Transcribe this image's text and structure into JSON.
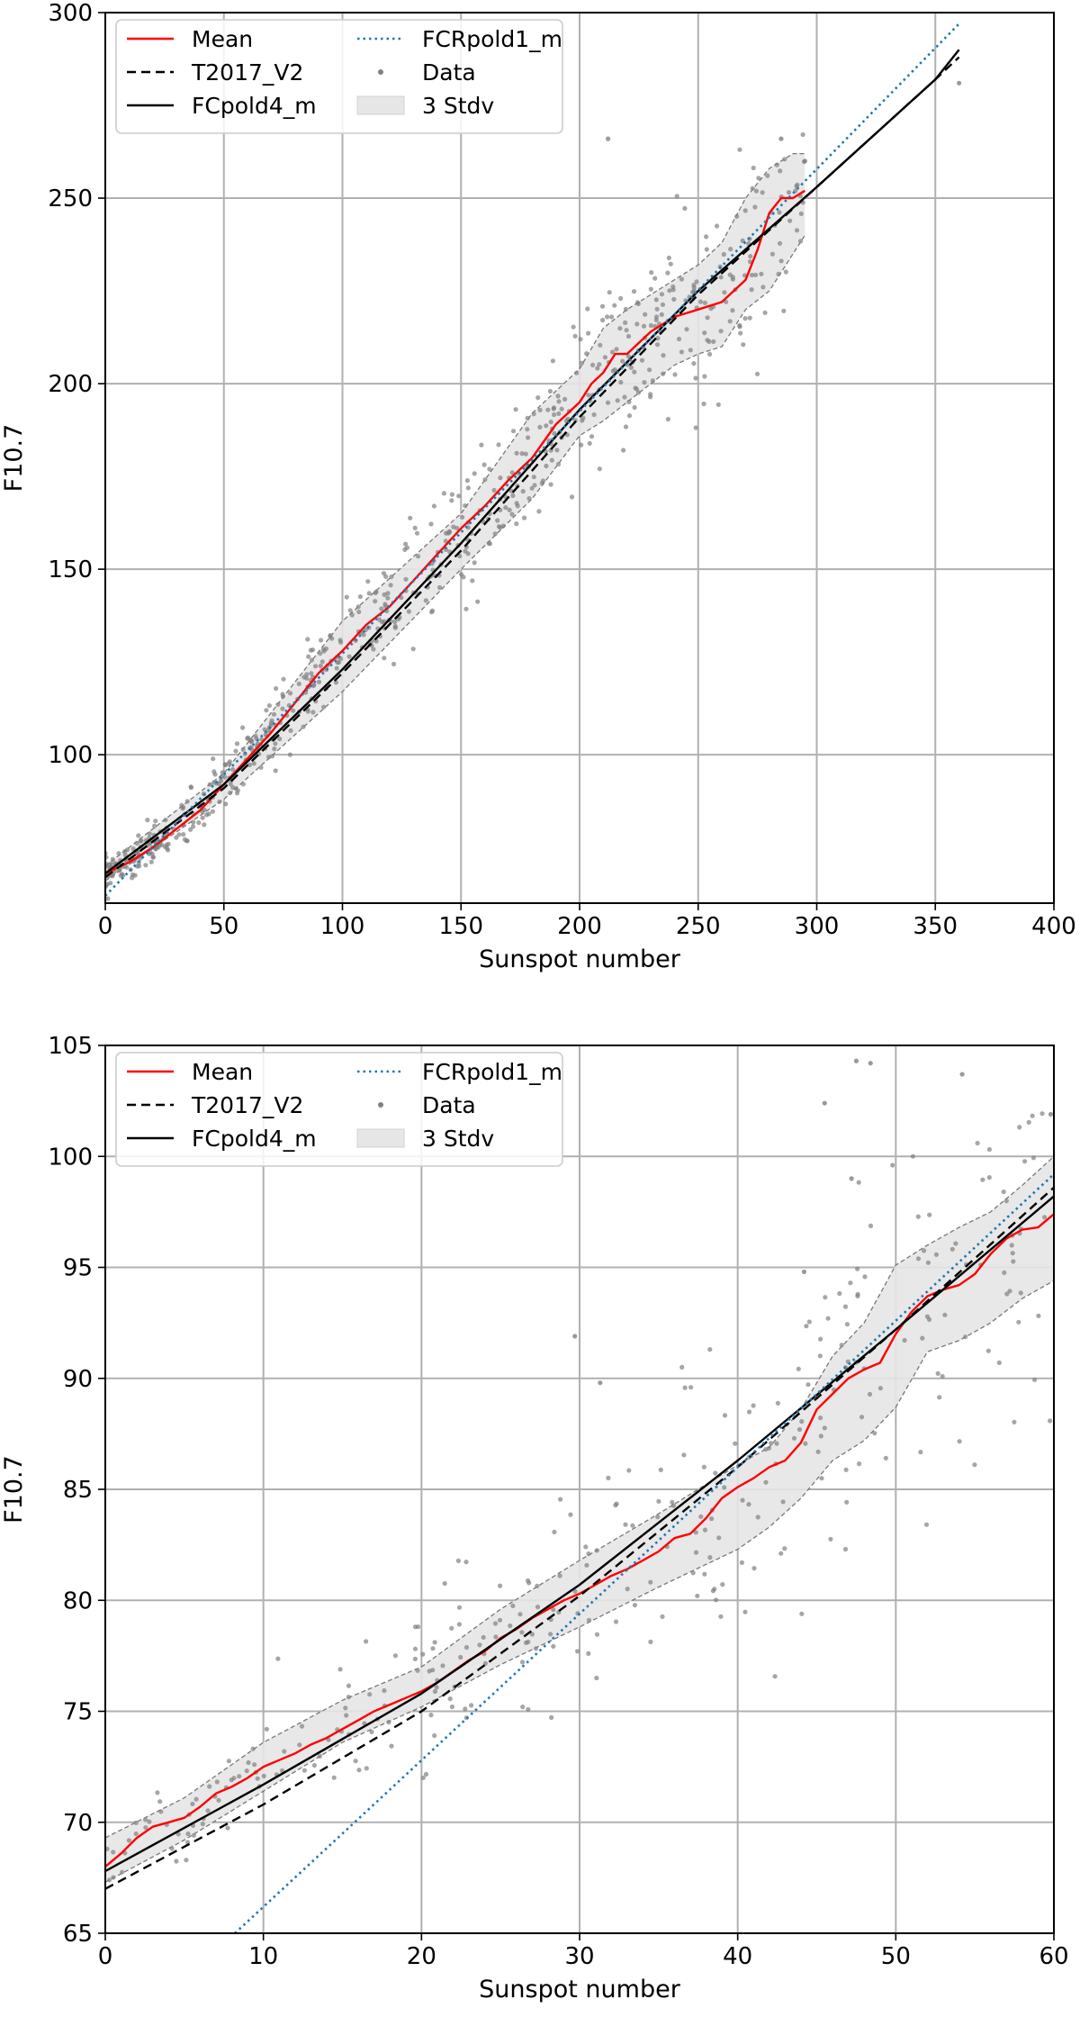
{
  "chart_data": [
    {
      "type": "scatter",
      "title": "",
      "xlabel": "Sunspot number",
      "ylabel": "F10.7",
      "xlim": [
        0,
        400
      ],
      "ylim": [
        60,
        300
      ],
      "xticks": [
        0,
        50,
        100,
        150,
        200,
        250,
        300,
        350,
        400
      ],
      "yticks": [
        100,
        150,
        200,
        250,
        300
      ],
      "grid": true,
      "legend": {
        "placement": "top-left",
        "entries": [
          "Mean",
          "T2017_V2",
          "FCpold4_m",
          "FCRpold1_m",
          "Data",
          "3 Stdv"
        ]
      },
      "series": [
        {
          "name": "Mean",
          "style": "solid",
          "color": "#ff0000",
          "x": [
            0,
            10,
            20,
            30,
            40,
            50,
            60,
            70,
            80,
            90,
            100,
            110,
            120,
            130,
            140,
            150,
            160,
            170,
            180,
            190,
            200,
            205,
            210,
            215,
            220,
            230,
            240,
            250,
            260,
            270,
            275,
            280,
            285,
            290,
            295
          ],
          "y": [
            68,
            71,
            75,
            80,
            85,
            92,
            99,
            106,
            114,
            122,
            128,
            135,
            140,
            147,
            154,
            161,
            167,
            174,
            180,
            189,
            195,
            200,
            203,
            208,
            208,
            214,
            218,
            220,
            222,
            228,
            236,
            246,
            250,
            250,
            252
          ]
        },
        {
          "name": "T2017_V2",
          "style": "dashed",
          "color": "#000000",
          "x": [
            0,
            50,
            100,
            150,
            200,
            250,
            300,
            350,
            360
          ],
          "y": [
            67,
            91,
            122,
            155,
            191,
            224,
            253,
            282,
            288
          ]
        },
        {
          "name": "FCpold4_m",
          "style": "solid",
          "color": "#000000",
          "x": [
            0,
            50,
            100,
            150,
            200,
            250,
            300,
            350,
            360
          ],
          "y": [
            68,
            92,
            123,
            157,
            193,
            225,
            253,
            282,
            290
          ]
        },
        {
          "name": "FCRpold1_m",
          "style": "dotted",
          "color": "#1f77b4",
          "x": [
            0,
            360
          ],
          "y": [
            62,
            297
          ]
        }
      ],
      "band": {
        "name": "3 Stdv",
        "x": [
          0,
          50,
          100,
          150,
          180,
          200,
          210,
          220,
          240,
          250,
          260,
          270,
          280,
          290,
          295
        ],
        "lower": [
          66,
          88,
          117,
          150,
          169,
          186,
          190,
          195,
          205,
          208,
          210,
          220,
          225,
          235,
          240
        ],
        "upper": [
          70,
          95,
          136,
          165,
          192,
          204,
          215,
          220,
          228,
          232,
          238,
          250,
          258,
          262,
          262
        ]
      },
      "data_points": {
        "name": "Data",
        "x_range": [
          0,
          360
        ],
        "color": "#808080",
        "count": 700
      },
      "highlight_points": [
        {
          "x": 212,
          "y": 266
        },
        {
          "x": 285,
          "y": 266
        },
        {
          "x": 295,
          "y": 260
        },
        {
          "x": 360,
          "y": 281
        }
      ]
    },
    {
      "type": "scatter",
      "title": "",
      "xlabel": "Sunspot number",
      "ylabel": "F10.7",
      "xlim": [
        0,
        60
      ],
      "ylim": [
        65,
        105
      ],
      "xticks": [
        0,
        10,
        20,
        30,
        40,
        50,
        60
      ],
      "yticks": [
        65,
        70,
        75,
        80,
        85,
        90,
        95,
        100,
        105
      ],
      "grid": true,
      "legend": {
        "placement": "top-left",
        "entries": [
          "Mean",
          "T2017_V2",
          "FCpold4_m",
          "FCRpold1_m",
          "Data",
          "3 Stdv"
        ]
      },
      "series": [
        {
          "name": "Mean",
          "style": "solid",
          "color": "#ff0000",
          "x": [
            0,
            1,
            2,
            3,
            4,
            5,
            6,
            7,
            8,
            9,
            10,
            11,
            12,
            13,
            14,
            15,
            16,
            17,
            18,
            19,
            20,
            21,
            22,
            23,
            24,
            25,
            26,
            27,
            28,
            29,
            30,
            31,
            32,
            33,
            34,
            35,
            36,
            37,
            38,
            39,
            40,
            41,
            42,
            43,
            44,
            45,
            46,
            47,
            48,
            49,
            50,
            51,
            52,
            53,
            54,
            55,
            56,
            57,
            58,
            59,
            60
          ],
          "y": [
            68,
            68.6,
            69.3,
            69.8,
            70.0,
            70.2,
            70.7,
            71.3,
            71.6,
            72.0,
            72.5,
            72.8,
            73.1,
            73.5,
            73.8,
            74.2,
            74.6,
            75.0,
            75.3,
            75.6,
            75.9,
            76.3,
            76.8,
            77.3,
            77.7,
            78.3,
            78.7,
            79.2,
            79.6,
            80.0,
            80.3,
            80.7,
            81.1,
            81.4,
            81.8,
            82.2,
            82.8,
            83.0,
            83.7,
            84.6,
            85.1,
            85.5,
            86.0,
            86.3,
            87.1,
            88.6,
            89.3,
            90.0,
            90.4,
            90.7,
            92.0,
            93.0,
            93.7,
            94.0,
            94.2,
            94.7,
            95.6,
            96.3,
            96.7,
            96.8,
            97.4
          ]
        },
        {
          "name": "T2017_V2",
          "style": "dashed",
          "color": "#000000",
          "x": [
            0,
            10,
            20,
            30,
            40,
            50,
            60
          ],
          "y": [
            67.0,
            70.8,
            75.0,
            80.2,
            86.0,
            92.2,
            98.6
          ]
        },
        {
          "name": "FCpold4_m",
          "style": "solid",
          "color": "#000000",
          "x": [
            0,
            10,
            20,
            30,
            40,
            50,
            60
          ],
          "y": [
            67.8,
            71.7,
            75.8,
            80.7,
            86.3,
            92.2,
            98.2
          ]
        },
        {
          "name": "FCRpold1_m",
          "style": "dotted",
          "color": "#1f77b4",
          "x": [
            8.2,
            60
          ],
          "y": [
            65,
            99.2
          ]
        }
      ],
      "band": {
        "name": "3 Stdv",
        "x": [
          0,
          5,
          10,
          15,
          20,
          25,
          30,
          35,
          40,
          42,
          44,
          46,
          48,
          50,
          52,
          54,
          56,
          58,
          60
        ],
        "lower": [
          67.3,
          69.2,
          71.4,
          73.6,
          75.2,
          77.1,
          78.8,
          80.6,
          82.3,
          83.3,
          84.6,
          86.3,
          87.2,
          88.7,
          91.2,
          91.7,
          92.5,
          93.6,
          94.4
        ],
        "upper": [
          69.3,
          71.1,
          73.6,
          75.5,
          77.0,
          79.6,
          81.8,
          83.9,
          86.1,
          86.9,
          88.6,
          91.0,
          92.5,
          95.1,
          96.0,
          96.8,
          97.5,
          98.7,
          100.0
        ]
      },
      "data_points": {
        "name": "Data",
        "x_range": [
          0,
          60
        ],
        "color": "#808080",
        "count": 320
      },
      "highlight_points": [
        {
          "x": 29.7,
          "y": 91.9
        },
        {
          "x": 31.3,
          "y": 89.8
        },
        {
          "x": 44.2,
          "y": 94.8
        },
        {
          "x": 45.5,
          "y": 102.4
        },
        {
          "x": 47.5,
          "y": 104.3
        },
        {
          "x": 48.4,
          "y": 104.2
        },
        {
          "x": 47.2,
          "y": 99
        },
        {
          "x": 54.2,
          "y": 103.7
        },
        {
          "x": 59.8,
          "y": 101.9
        }
      ]
    }
  ]
}
